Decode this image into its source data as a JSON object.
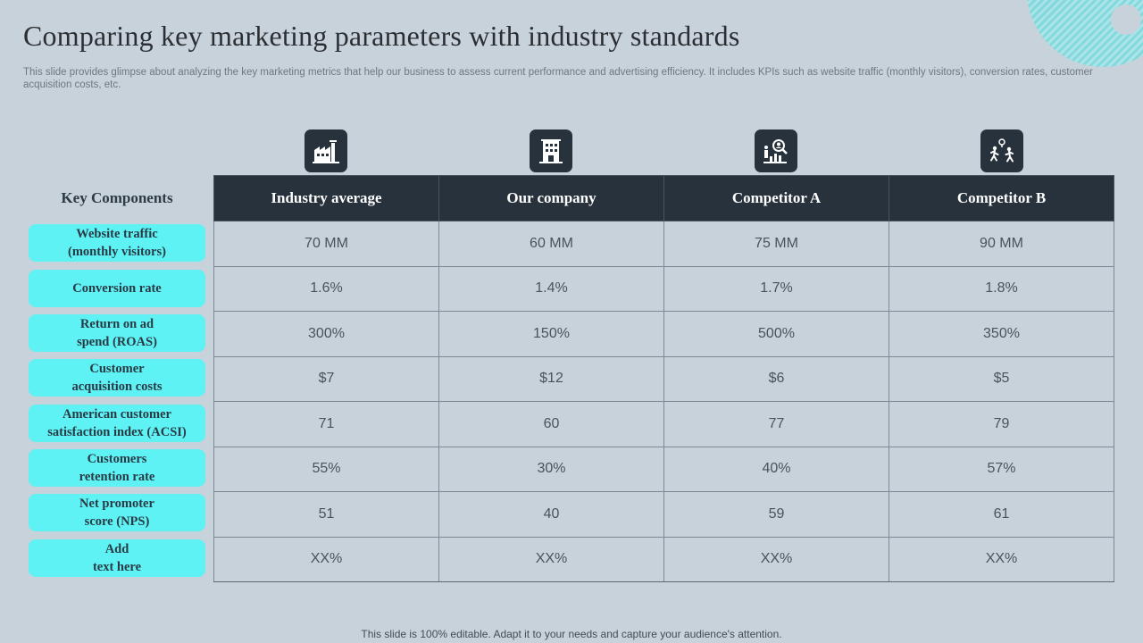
{
  "title": "Comparing key marketing parameters with industry standards",
  "subtitle": "This slide provides glimpse about analyzing the key marketing metrics that help our business to assess current performance and advertising efficiency. It includes KPIs such as website traffic (monthly visitors), conversion rates, customer acquisition costs, etc.",
  "key_header": "Key Components",
  "columns": [
    {
      "label": "Industry average",
      "icon": "factory-icon"
    },
    {
      "label": "Our company",
      "icon": "office-building-icon"
    },
    {
      "label": "Competitor A",
      "icon": "market-analysis-icon"
    },
    {
      "label": "Competitor B",
      "icon": "competing-runners-icon"
    }
  ],
  "rows": [
    {
      "label": "Website traffic\n(monthly  visitors)",
      "values": [
        "70 MM",
        "60 MM",
        "75 MM",
        "90 MM"
      ]
    },
    {
      "label": "Conversion rate",
      "values": [
        "1.6%",
        "1.4%",
        "1.7%",
        "1.8%"
      ]
    },
    {
      "label": "Return on ad\nspend (ROAS)",
      "values": [
        "300%",
        "150%",
        "500%",
        "350%"
      ]
    },
    {
      "label": "Customer\nacquisition  costs",
      "values": [
        "$7",
        "$12",
        "$6",
        "$5"
      ]
    },
    {
      "label": "American  customer\nsatisfaction index (ACSI)",
      "values": [
        "71",
        "60",
        "77",
        "79"
      ]
    },
    {
      "label": "Customers\nretention rate",
      "values": [
        "55%",
        "30%",
        "40%",
        "57%"
      ]
    },
    {
      "label": "Net promoter\nscore (NPS)",
      "values": [
        "51",
        "40",
        "59",
        "61"
      ]
    },
    {
      "label": "Add\ntext here",
      "values": [
        "XX%",
        "XX%",
        "XX%",
        "XX%"
      ]
    }
  ],
  "footer": "This slide is 100% editable. Adapt it to your needs and capture your audience's attention.",
  "colors": {
    "background": "#c8d2db",
    "header": "#28323d",
    "accent": "#5ef2f4"
  }
}
